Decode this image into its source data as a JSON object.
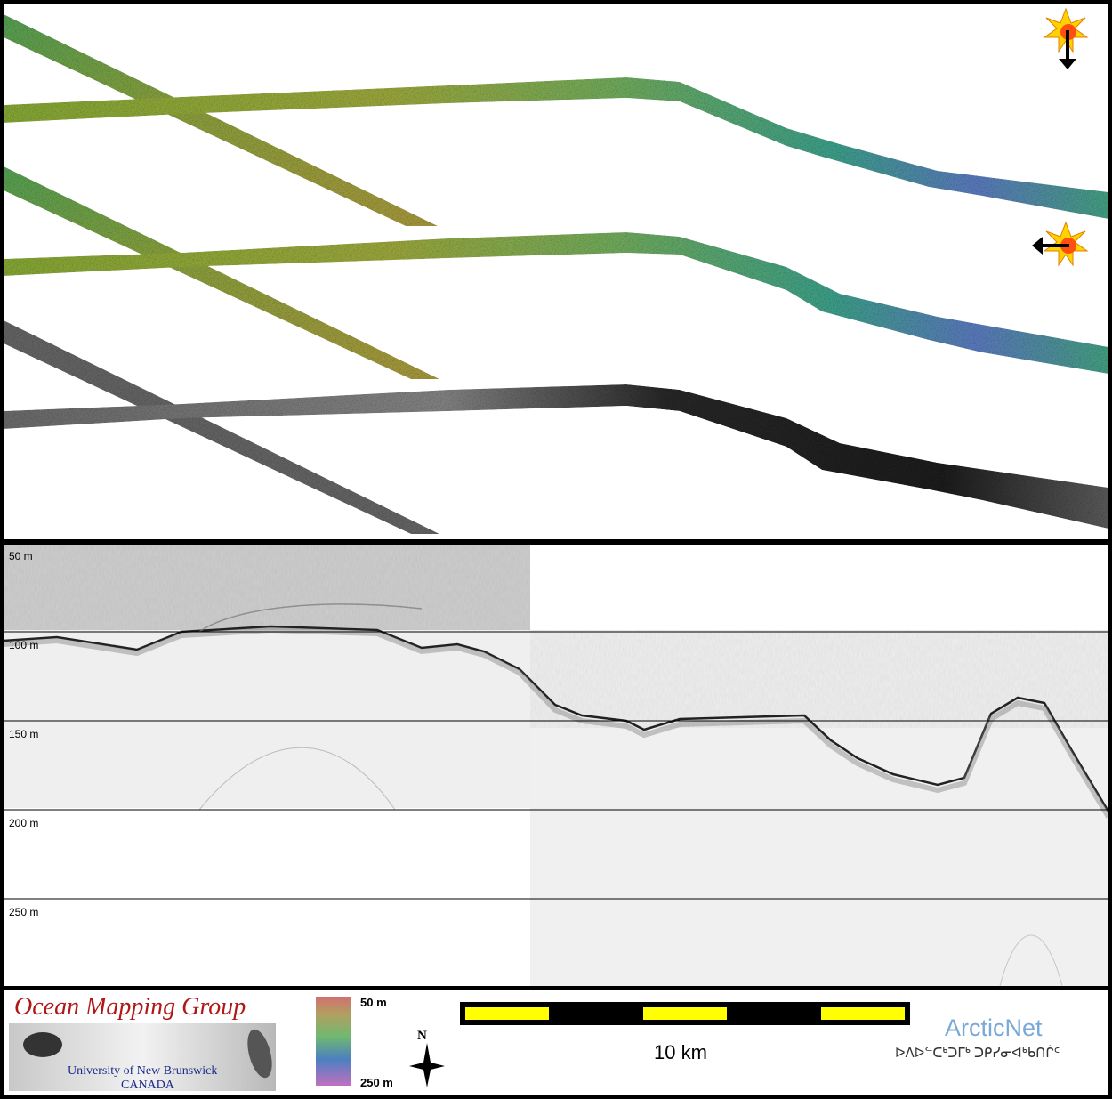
{
  "profile": {
    "depth_labels": [
      "50 m",
      "100 m",
      "150 m",
      "200 m",
      "250 m"
    ]
  },
  "footer": {
    "org_title": "Ocean Mapping Group",
    "org_sub1": "University of New Brunswick",
    "org_sub2": "CANADA",
    "colorbar_top": "50 m",
    "colorbar_bottom": "250 m",
    "north_label": "N",
    "scale_label": "10 km",
    "arcticnet": "ArcticNet",
    "arcticnet_syllabics": "ᐅᐱᐅᓪᑕᒃᑐᒥᒃ ᑐᑭᓯᓂᐊᒃᑲᑎᒌᑦ"
  },
  "illumination": {
    "sun_icon_1": "sun-arrow-down-icon",
    "sun_icon_2": "sun-arrow-left-icon"
  },
  "colors": {
    "shallow": "#8a8a30",
    "mid": "#3aa878",
    "deep": "#5a6fc8",
    "scale_yellow": "#ffff00",
    "org_red": "#b01818"
  }
}
